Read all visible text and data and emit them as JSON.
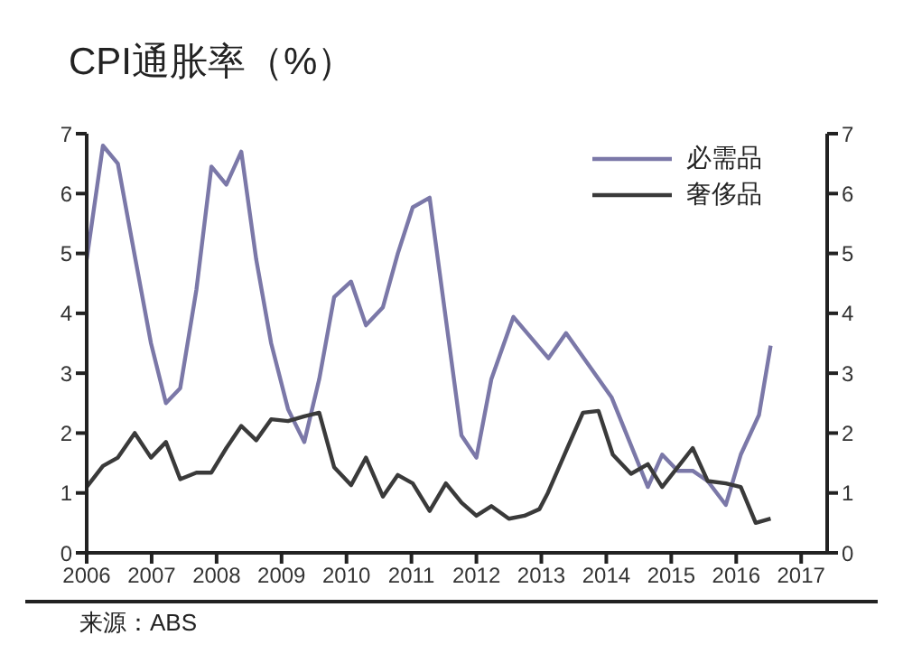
{
  "chart_data": {
    "type": "line",
    "title": "CPI通胀率（%）",
    "annotations": [
      "来源：ABS"
    ],
    "series": [
      {
        "name": "必需品",
        "color": "#7b78a8",
        "x": [
          2006,
          2006.25,
          2006.48,
          2006.74,
          2006.99,
          2007.22,
          2007.44,
          2007.69,
          2007.92,
          2008.15,
          2008.38,
          2008.61,
          2008.84,
          2009.1,
          2009.35,
          2009.58,
          2009.81,
          2010.07,
          2010.3,
          2010.56,
          2010.79,
          2011.02,
          2011.28,
          2011.77,
          2012.0,
          2012.23,
          2012.57,
          2013.11,
          2013.38,
          2014.08,
          2014.36,
          2014.64,
          2014.86,
          2015.1,
          2015.33,
          2015.56,
          2015.84,
          2016.07,
          2016.35,
          2016.53
        ],
        "values": [
          4.9,
          6.8,
          6.5,
          4.96,
          3.5,
          2.5,
          2.75,
          4.4,
          6.45,
          6.15,
          6.7,
          4.9,
          3.5,
          2.4,
          1.85,
          2.9,
          4.27,
          4.53,
          3.8,
          4.1,
          5.0,
          5.77,
          5.93,
          1.96,
          1.59,
          2.9,
          3.94,
          3.25,
          3.67,
          2.6,
          1.85,
          1.1,
          1.64,
          1.37,
          1.37,
          1.2,
          0.8,
          1.64,
          2.3,
          3.46
        ]
      },
      {
        "name": "奢侈品",
        "color": "#3a3a3a",
        "x": [
          2006,
          2006.25,
          2006.48,
          2006.74,
          2006.99,
          2007.22,
          2007.44,
          2007.69,
          2007.92,
          2008.15,
          2008.38,
          2008.61,
          2008.84,
          2009.1,
          2009.35,
          2009.58,
          2009.81,
          2010.07,
          2010.3,
          2010.56,
          2010.79,
          2011.02,
          2011.28,
          2011.53,
          2011.77,
          2012.0,
          2012.23,
          2012.5,
          2012.74,
          2012.97,
          2013.1,
          2013.4,
          2013.64,
          2013.88,
          2014.1,
          2014.38,
          2014.64,
          2014.86,
          2015.1,
          2015.33,
          2015.56,
          2015.84,
          2016.07,
          2016.3,
          2016.53
        ],
        "values": [
          1.1,
          1.45,
          1.59,
          2.0,
          1.59,
          1.85,
          1.23,
          1.34,
          1.34,
          1.75,
          2.12,
          1.88,
          2.23,
          2.2,
          2.28,
          2.34,
          1.43,
          1.13,
          1.59,
          0.94,
          1.3,
          1.16,
          0.7,
          1.16,
          0.84,
          0.62,
          0.78,
          0.57,
          0.62,
          0.73,
          1.0,
          1.75,
          2.34,
          2.37,
          1.64,
          1.32,
          1.48,
          1.1,
          1.43,
          1.75,
          1.2,
          1.16,
          1.1,
          0.5,
          0.57
        ]
      }
    ],
    "xlim": [
      2006,
      2017.4
    ],
    "xticks": [
      2006,
      2007,
      2008,
      2009,
      2010,
      2011,
      2012,
      2013,
      2014,
      2015,
      2016,
      2017
    ],
    "ylim": [
      0,
      7
    ],
    "yticks": [
      0,
      1,
      2,
      3,
      4,
      5,
      6,
      7
    ],
    "y2lim": [
      0,
      7
    ],
    "y2ticks": [
      0,
      1,
      2,
      3,
      4,
      5,
      6,
      7
    ],
    "legend": "top right",
    "marker": "none",
    "line_style": "solid"
  }
}
